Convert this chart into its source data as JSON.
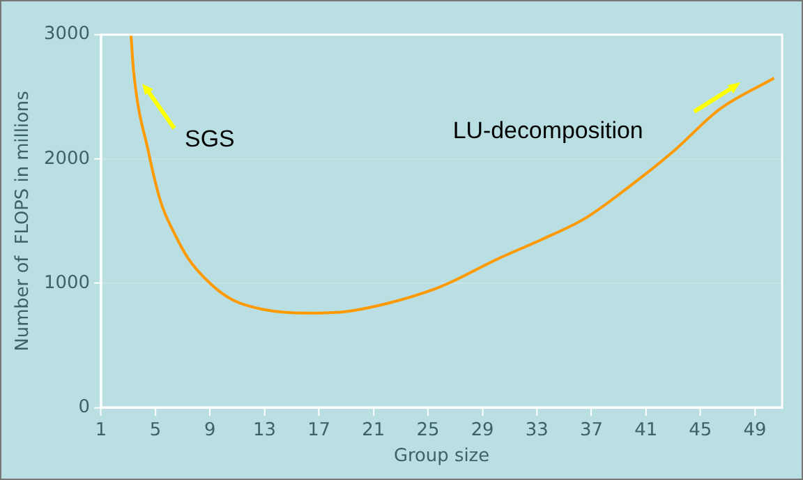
{
  "chart_data": {
    "type": "line",
    "xlabel": "Group size",
    "ylabel": "Number of  FLOPS in millions",
    "x": [
      3.2,
      3.4,
      4.5,
      5.4,
      6.4,
      7.4,
      9,
      10.6,
      12.9,
      16.2,
      18.8,
      22.1,
      25.4,
      26.7,
      30,
      33.3,
      36.5,
      39.8,
      43.1,
      46.4,
      50.4
    ],
    "series": [
      {
        "color": "#ff9900",
        "values": [
          3000,
          2700,
          2050,
          1650,
          1400,
          1200,
          1000,
          870,
          790,
          760,
          770,
          840,
          950,
          1010,
          1190,
          1350,
          1520,
          1780,
          2070,
          2400,
          2650
        ]
      }
    ],
    "xlim": [
      1,
      51
    ],
    "xticks": [
      1,
      5,
      9,
      13,
      17,
      21,
      25,
      29,
      33,
      37,
      41,
      45,
      49
    ],
    "ylim": [
      0,
      3000
    ],
    "yticks": [
      0,
      1000,
      2000,
      3000
    ],
    "annotations": [
      "SGS",
      "LU-decomposition"
    ],
    "grid": "y",
    "legend": false,
    "marker": "none",
    "line_style": "solid"
  }
}
